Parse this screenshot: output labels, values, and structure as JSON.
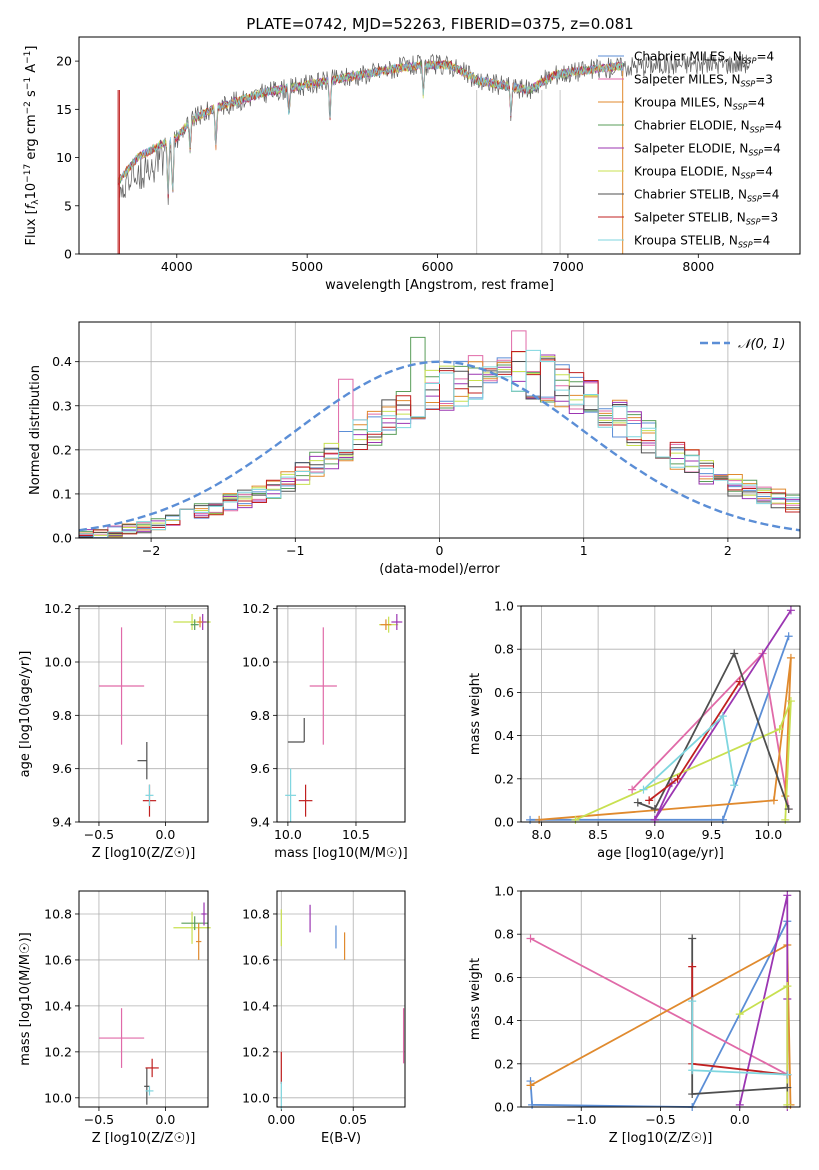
{
  "title": "PLATE=0742, MJD=52263, FIBERID=0375, z=0.081",
  "colors": {
    "Chabrier MILES": "#5b8ed6",
    "Salpeter MILES": "#e06aa8",
    "Kroupa MILES": "#e08a2e",
    "Chabrier ELODIE": "#5a9e5a",
    "Salpeter ELODIE": "#9b36b2",
    "Kroupa ELODIE": "#c8e050",
    "Chabrier STELIB": "#4f4f4f",
    "Salpeter STELIB": "#c02020",
    "Kroupa STELIB": "#7fd6df",
    "normal": "#5b8ed6",
    "grid": "#b0b0b0"
  },
  "chart_data": [
    {
      "id": "spectrum",
      "type": "line",
      "title": "PLATE=0742, MJD=52263, FIBERID=0375, z=0.081",
      "xlabel": "wavelength [Angstrom, rest frame]",
      "ylabel": "Flux [f_λ 10^-17 erg cm^-2 s^-1 A^-1]",
      "xlim": [
        3250,
        8780
      ],
      "ylim": [
        0,
        22.5
      ],
      "xticks": [
        4000,
        5000,
        6000,
        7000,
        8000
      ],
      "yticks": [
        0,
        5,
        10,
        15,
        20
      ],
      "grid": false,
      "legend_position": "top-right",
      "legend": [
        {
          "label": "Chabrier MILES, N",
          "sub": "SSP",
          "tail": "=4",
          "series": "Chabrier MILES"
        },
        {
          "label": "Salpeter MILES, N",
          "sub": "SSP",
          "tail": "=3",
          "series": "Salpeter MILES"
        },
        {
          "label": "Kroupa MILES, N",
          "sub": "SSP",
          "tail": "=4",
          "series": "Kroupa MILES"
        },
        {
          "label": "Chabrier ELODIE, N",
          "sub": "SSP",
          "tail": "=4",
          "series": "Chabrier ELODIE"
        },
        {
          "label": "Salpeter ELODIE, N",
          "sub": "SSP",
          "tail": "=4",
          "series": "Salpeter ELODIE"
        },
        {
          "label": "Kroupa ELODIE, N",
          "sub": "SSP",
          "tail": "=4",
          "series": "Kroupa ELODIE"
        },
        {
          "label": "Chabrier STELIB, N",
          "sub": "SSP",
          "tail": "=4",
          "series": "Chabrier STELIB"
        },
        {
          "label": "Salpeter STELIB, N",
          "sub": "SSP",
          "tail": "=3",
          "series": "Salpeter STELIB"
        },
        {
          "label": "Kroupa STELIB, N",
          "sub": "SSP",
          "tail": "=4",
          "series": "Kroupa STELIB"
        }
      ],
      "continuum": {
        "x": [
          3550,
          3700,
          3900,
          4000,
          4100,
          4300,
          4500,
          4700,
          4900,
          5100,
          5300,
          5500,
          5700,
          5900,
          6100,
          6300,
          6500,
          6700,
          6900,
          7100,
          7300,
          7420
        ],
        "y": [
          7.5,
          10.0,
          11.5,
          12.0,
          13.8,
          15.2,
          16.0,
          16.8,
          17.3,
          17.8,
          18.3,
          18.8,
          19.3,
          19.6,
          19.6,
          18.0,
          17.5,
          17.0,
          18.6,
          19.0,
          19.3,
          19.5
        ]
      },
      "data_trace": {
        "x_range": [
          3550,
          8400
        ],
        "continuum": {
          "x": [
            3550,
            3700,
            3900,
            4000,
            4100,
            4300,
            4500,
            4700,
            4900,
            5100,
            5300,
            5500,
            5700,
            5900,
            6100,
            6300,
            6500,
            6700,
            6900,
            7100,
            7300,
            7500,
            7700,
            7900,
            8100,
            8400
          ],
          "y": [
            7.5,
            10.0,
            11.5,
            12.0,
            13.8,
            15.2,
            16.0,
            16.8,
            17.3,
            17.8,
            18.3,
            18.8,
            19.3,
            19.6,
            19.6,
            18.0,
            17.5,
            17.0,
            18.6,
            19.0,
            19.3,
            19.5,
            19.6,
            19.7,
            19.7,
            19.8
          ]
        }
      },
      "absorption_lines": [
        {
          "x": 3933,
          "depth": 6
        },
        {
          "x": 3968,
          "depth": 6
        },
        {
          "x": 4102,
          "depth": 3
        },
        {
          "x": 4300,
          "depth": 4
        },
        {
          "x": 4861,
          "depth": 3
        },
        {
          "x": 5175,
          "depth": 4
        },
        {
          "x": 5890,
          "depth": 3
        },
        {
          "x": 6563,
          "depth": 3
        }
      ],
      "vertical_gaps": [
        3550,
        3560,
        6300,
        6800,
        6940,
        7420
      ]
    },
    {
      "id": "residuals",
      "type": "histogram",
      "xlabel": "(data-model)/error",
      "ylabel": "Normed distribution",
      "xlim": [
        -2.5,
        2.5
      ],
      "ylim": [
        0,
        0.49
      ],
      "xticks": [
        -2,
        -1,
        0,
        1,
        2
      ],
      "yticks": [
        0.0,
        0.1,
        0.2,
        0.3,
        0.4
      ],
      "grid": true,
      "legend_position": "top-right",
      "legend": [
        {
          "label": "𝒩(0, 1)",
          "series": "normal",
          "style": "dashed"
        }
      ],
      "bin_edges": [
        -2.5,
        -2.4,
        -2.3,
        -2.2,
        -2.1,
        -2.0,
        -1.9,
        -1.8,
        -1.7,
        -1.6,
        -1.5,
        -1.4,
        -1.3,
        -1.2,
        -1.1,
        -1.0,
        -0.9,
        -0.8,
        -0.7,
        -0.6,
        -0.5,
        -0.4,
        -0.3,
        -0.2,
        -0.1,
        0.0,
        0.1,
        0.2,
        0.3,
        0.4,
        0.5,
        0.6,
        0.7,
        0.8,
        0.9,
        1.0,
        1.1,
        1.2,
        1.3,
        1.4,
        1.5,
        1.6,
        1.7,
        1.8,
        1.9,
        2.0,
        2.1,
        2.2,
        2.3,
        2.4,
        2.5
      ],
      "base_counts": [
        0.01,
        0.01,
        0.015,
        0.02,
        0.025,
        0.03,
        0.04,
        0.05,
        0.06,
        0.07,
        0.08,
        0.09,
        0.1,
        0.11,
        0.13,
        0.15,
        0.17,
        0.19,
        0.21,
        0.23,
        0.25,
        0.27,
        0.29,
        0.31,
        0.33,
        0.34,
        0.35,
        0.36,
        0.37,
        0.37,
        0.37,
        0.37,
        0.36,
        0.35,
        0.33,
        0.31,
        0.29,
        0.27,
        0.25,
        0.23,
        0.21,
        0.19,
        0.17,
        0.15,
        0.13,
        0.12,
        0.11,
        0.1,
        0.09,
        0.08
      ],
      "normal_curve": {
        "mean": 0,
        "sigma": 1,
        "peak": 0.4
      }
    },
    {
      "id": "age-vs-Z",
      "type": "errorbar",
      "xlabel": "Z [log10(Z/Z☉)]",
      "ylabel": "age  [log10(age/yr)]",
      "xlim": [
        -0.65,
        0.32
      ],
      "ylim": [
        9.4,
        10.21
      ],
      "xticks": [
        -0.5,
        0.0
      ],
      "yticks": [
        9.4,
        9.6,
        9.8,
        10.0,
        10.2
      ],
      "points": [
        {
          "series": "Salpeter MILES",
          "x": -0.33,
          "y": 9.91,
          "xerr": 0.17,
          "yerr": 0.22
        },
        {
          "series": "Chabrier STELIB",
          "x": -0.14,
          "y": 9.63,
          "xerr": [
            0.07,
            0.0
          ],
          "yerr": 0.07
        },
        {
          "series": "Salpeter STELIB",
          "x": -0.12,
          "y": 9.48,
          "xerr": 0.05,
          "yerr": 0.06
        },
        {
          "series": "Kroupa STELIB",
          "x": -0.12,
          "y": 9.5,
          "xerr": 0.03,
          "yerr": 0.04
        },
        {
          "series": "Kroupa ELODIE",
          "x": 0.2,
          "y": 10.15,
          "xerr": 0.14,
          "yerr": 0.03
        },
        {
          "series": "Salpeter ELODIE",
          "x": 0.28,
          "y": 10.15,
          "xerr": 0.03,
          "yerr": 0.03
        },
        {
          "series": "Kroupa MILES",
          "x": 0.26,
          "y": 10.15,
          "xerr": 0.02,
          "yerr": 0.02
        },
        {
          "series": "Chabrier ELODIE",
          "x": 0.22,
          "y": 10.14,
          "xerr": 0.03,
          "yerr": 0.02
        }
      ]
    },
    {
      "id": "age-vs-mass",
      "type": "errorbar",
      "xlabel": "mass [log10(M/M☉)]",
      "ylabel": "",
      "xlim": [
        9.92,
        10.86
      ],
      "ylim": [
        9.4,
        10.21
      ],
      "xticks": [
        10.0,
        10.5
      ],
      "yticks": [
        9.4,
        9.6,
        9.8,
        10.0,
        10.2
      ],
      "points": [
        {
          "series": "Salpeter MILES",
          "x": 10.26,
          "y": 9.91,
          "xerr": 0.1,
          "yerr": 0.22
        },
        {
          "series": "Chabrier STELIB",
          "x": 10.12,
          "y": 9.7,
          "xerr": [
            0.12,
            0.0
          ],
          "yerr": [
            0.0,
            0.09
          ]
        },
        {
          "series": "Salpeter STELIB",
          "x": 10.13,
          "y": 9.48,
          "xerr": 0.05,
          "yerr": 0.06
        },
        {
          "series": "Kroupa STELIB",
          "x": 10.02,
          "y": 9.5,
          "xerr": 0.04,
          "yerr": 0.1
        },
        {
          "series": "Kroupa ELODIE",
          "x": 10.74,
          "y": 10.14,
          "xerr": 0.07,
          "yerr": 0.03
        },
        {
          "series": "Salpeter ELODIE",
          "x": 10.8,
          "y": 10.15,
          "xerr": 0.04,
          "yerr": 0.03
        },
        {
          "series": "Kroupa MILES",
          "x": 10.72,
          "y": 10.14,
          "xerr": 0.04,
          "yerr": 0.02
        }
      ]
    },
    {
      "id": "massweight-vs-age",
      "type": "line",
      "xlabel": "age  [log10(age/yr)]",
      "ylabel": "mass weight",
      "xlim": [
        7.82,
        10.28
      ],
      "ylim": [
        0,
        1.0
      ],
      "xticks": [
        8.0,
        8.5,
        9.0,
        9.5,
        10.0
      ],
      "yticks": [
        0.0,
        0.2,
        0.4,
        0.6,
        0.8,
        1.0
      ],
      "grid": true,
      "series": [
        {
          "name": "Chabrier MILES",
          "x": [
            7.9,
            9.6,
            10.18,
            9.6
          ],
          "y": [
            0.01,
            0.01,
            0.86,
            0.01
          ]
        },
        {
          "name": "Salpeter MILES",
          "x": [
            8.8,
            9.95,
            10.18
          ],
          "y": [
            0.15,
            0.78,
            0.06
          ]
        },
        {
          "name": "Kroupa MILES",
          "x": [
            7.98,
            10.05,
            10.2,
            10.15
          ],
          "y": [
            0.01,
            0.1,
            0.76,
            0.12
          ]
        },
        {
          "name": "Salpeter ELODIE",
          "x": [
            9.0,
            10.2,
            9.0,
            9.15
          ],
          "y": [
            0.01,
            0.98,
            0.01,
            0.18
          ]
        },
        {
          "name": "Kroupa ELODIE",
          "x": [
            8.3,
            10.1,
            10.2,
            10.15
          ],
          "y": [
            0.01,
            0.43,
            0.56,
            0.01
          ]
        },
        {
          "name": "Chabrier STELIB",
          "x": [
            8.85,
            9.0,
            9.7,
            10.18
          ],
          "y": [
            0.09,
            0.06,
            0.78,
            0.06
          ]
        },
        {
          "name": "Salpeter STELIB",
          "x": [
            8.95,
            9.2,
            9.75
          ],
          "y": [
            0.1,
            0.2,
            0.65
          ]
        },
        {
          "name": "Kroupa STELIB",
          "x": [
            8.9,
            9.6,
            9.7
          ],
          "y": [
            0.15,
            0.49,
            0.17
          ]
        }
      ]
    },
    {
      "id": "mass-vs-Z",
      "type": "errorbar",
      "xlabel": "Z [log10(Z/Z☉)]",
      "ylabel": "mass [log10(M/M☉)]",
      "xlim": [
        -0.65,
        0.32
      ],
      "ylim": [
        9.96,
        10.9
      ],
      "xticks": [
        -0.5,
        0.0
      ],
      "yticks": [
        10.0,
        10.2,
        10.4,
        10.6,
        10.8
      ],
      "points": [
        {
          "series": "Salpeter MILES",
          "x": -0.33,
          "y": 10.26,
          "xerr": 0.17,
          "yerr": 0.13
        },
        {
          "series": "Chabrier STELIB",
          "x": -0.14,
          "y": 10.05,
          "xerr": 0.02,
          "yerr": 0.08
        },
        {
          "series": "Salpeter STELIB",
          "x": -0.1,
          "y": 10.13,
          "xerr": 0.05,
          "yerr": 0.04
        },
        {
          "series": "Kroupa STELIB",
          "x": -0.12,
          "y": 10.03,
          "xerr": 0.03,
          "yerr": 0.02
        },
        {
          "series": "Kroupa ELODIE",
          "x": 0.2,
          "y": 10.74,
          "xerr": 0.14,
          "yerr": 0.07
        },
        {
          "series": "Chabrier ELODIE",
          "x": 0.22,
          "y": 10.76,
          "xerr": 0.1,
          "yerr": 0.03
        },
        {
          "series": "Salpeter ELODIE",
          "x": 0.29,
          "y": 10.8,
          "xerr": 0.02,
          "yerr": 0.05
        },
        {
          "series": "Kroupa MILES",
          "x": 0.25,
          "y": 10.68,
          "xerr": 0.02,
          "yerr": 0.08
        }
      ]
    },
    {
      "id": "mass-vs-ebv",
      "type": "errorbar",
      "xlabel": "E(B-V)",
      "ylabel": "",
      "xlim": [
        -0.003,
        0.086
      ],
      "ylim": [
        9.96,
        10.9
      ],
      "xticks": [
        0.0,
        0.05
      ],
      "yticks": [
        10.0,
        10.2,
        10.4,
        10.6,
        10.8
      ],
      "points": [
        {
          "series": "Kroupa ELODIE",
          "x": 0.0,
          "y": 10.74,
          "xerr": 0.0,
          "yerr": 0.08
        },
        {
          "series": "Salpeter STELIB",
          "x": 0.0,
          "y": 10.13,
          "xerr": 0.0,
          "yerr": 0.07
        },
        {
          "series": "Kroupa STELIB",
          "x": 0.0,
          "y": 10.01,
          "xerr": 0.0,
          "yerr": 0.06
        },
        {
          "series": "Salpeter ELODIE",
          "x": 0.02,
          "y": 10.78,
          "xerr": 0.0,
          "yerr": 0.06
        },
        {
          "series": "Chabrier MILES",
          "x": 0.038,
          "y": 10.7,
          "xerr": 0.0,
          "yerr": 0.05
        },
        {
          "series": "Kroupa MILES",
          "x": 0.044,
          "y": 10.66,
          "xerr": 0.0,
          "yerr": 0.06
        },
        {
          "series": "Salpeter MILES",
          "x": 0.085,
          "y": 10.27,
          "xerr": 0.0,
          "yerr": 0.12
        }
      ]
    },
    {
      "id": "massweight-vs-Z",
      "type": "line",
      "xlabel": "Z [log10(Z/Z☉)]",
      "ylabel": "mass weight",
      "xlim": [
        -1.38,
        0.38
      ],
      "ylim": [
        0,
        1.0
      ],
      "xticks": [
        -1.0,
        -0.5,
        0.0
      ],
      "yticks": [
        0.0,
        0.2,
        0.4,
        0.6,
        0.8,
        1.0
      ],
      "grid": true,
      "series": [
        {
          "name": "Chabrier MILES",
          "x": [
            -1.32,
            -1.31,
            -0.3,
            0.3
          ],
          "y": [
            0.12,
            0.01,
            0.0,
            0.86
          ]
        },
        {
          "name": "Salpeter MILES",
          "x": [
            -1.32,
            0.3
          ],
          "y": [
            0.78,
            0.15
          ]
        },
        {
          "name": "Kroupa MILES",
          "x": [
            -1.32,
            0.3,
            0.32
          ],
          "y": [
            0.1,
            0.75,
            0.01
          ]
        },
        {
          "name": "Salpeter ELODIE",
          "x": [
            0.0,
            0.3,
            0.3,
            0.3
          ],
          "y": [
            0.01,
            0.98,
            0.5,
            0.0
          ]
        },
        {
          "name": "Kroupa ELODIE",
          "x": [
            0.3,
            0.0,
            0.3,
            0.3
          ],
          "y": [
            0.56,
            0.43,
            0.56,
            0.01
          ]
        },
        {
          "name": "Chabrier STELIB",
          "x": [
            -0.3,
            -0.3,
            0.3
          ],
          "y": [
            0.78,
            0.06,
            0.09
          ]
        },
        {
          "name": "Salpeter STELIB",
          "x": [
            -0.3,
            -0.3,
            0.3
          ],
          "y": [
            0.65,
            0.2,
            0.15
          ]
        },
        {
          "name": "Kroupa STELIB",
          "x": [
            -0.3,
            -0.3,
            0.3
          ],
          "y": [
            0.49,
            0.17,
            0.15
          ]
        }
      ]
    }
  ],
  "labels": {
    "spectrum_xlabel": "wavelength [Angstrom, rest frame]",
    "residual_xlabel": "(data-model)/error",
    "residual_ylabel": "Normed distribution",
    "residual_legend": "𝒩(0, 1)",
    "mw_ylabel": "mass weight"
  }
}
